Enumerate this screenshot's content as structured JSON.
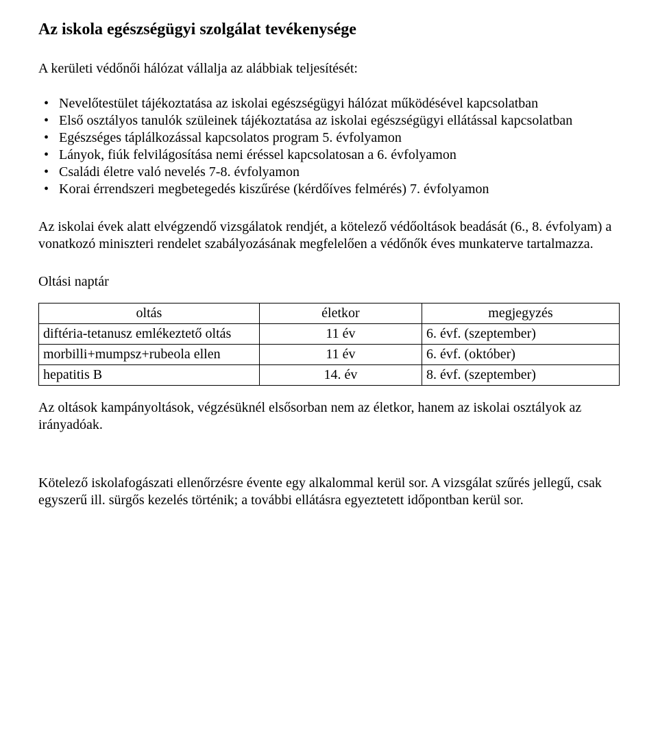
{
  "title": "Az iskola egészségügyi szolgálat tevékenysége",
  "intro": "A kerületi védőnői hálózat vállalja az alábbiak teljesítését:",
  "bullets": [
    "Nevelőtestület tájékoztatása az iskolai egészségügyi hálózat működésével kapcsolatban",
    "Első osztályos tanulók szüleinek tájékoztatása az iskolai egészségügyi ellátással kapcsolatban",
    "Egészséges táplálkozással kapcsolatos program 5. évfolyamon",
    "Lányok, fiúk felvilágosítása nemi éréssel kapcsolatosan a 6. évfolyamon",
    "Családi életre való nevelés 7-8. évfolyamon",
    "Korai érrendszeri megbetegedés kiszűrése (kérdőíves felmérés) 7. évfolyamon"
  ],
  "paragraph_exams": "Az iskolai évek alatt elvégzendő vizsgálatok rendjét, a kötelező védőoltások beadását (6., 8. évfolyam) a vonatkozó miniszteri rendelet szabályozásának megfelelően a védőnők éves munkaterve tartalmazza.",
  "vaccination_label": "Oltási naptár",
  "table": {
    "columns": [
      "oltás",
      "életkor",
      "megjegyzés"
    ],
    "rows": [
      [
        "diftéria-tetanusz emlékeztető oltás",
        "11 év",
        "6. évf. (szeptember)"
      ],
      [
        "morbilli+mumpsz+rubeola ellen",
        "11 év",
        "6. évf. (október)"
      ],
      [
        "hepatitis B",
        "14. év",
        "8. évf. (szeptember)"
      ]
    ]
  },
  "paragraph_campaign": "Az oltások kampányoltások, végzésüknél elsősorban nem az életkor, hanem az iskolai osztályok az irányadóak.",
  "paragraph_dental": "Kötelező iskolafogászati ellenőrzésre évente egy alkalommal kerül sor. A vizsgálat szűrés jellegű, csak egyszerű ill. sürgős kezelés történik; a további ellátásra egyeztetett időpontban kerül sor."
}
